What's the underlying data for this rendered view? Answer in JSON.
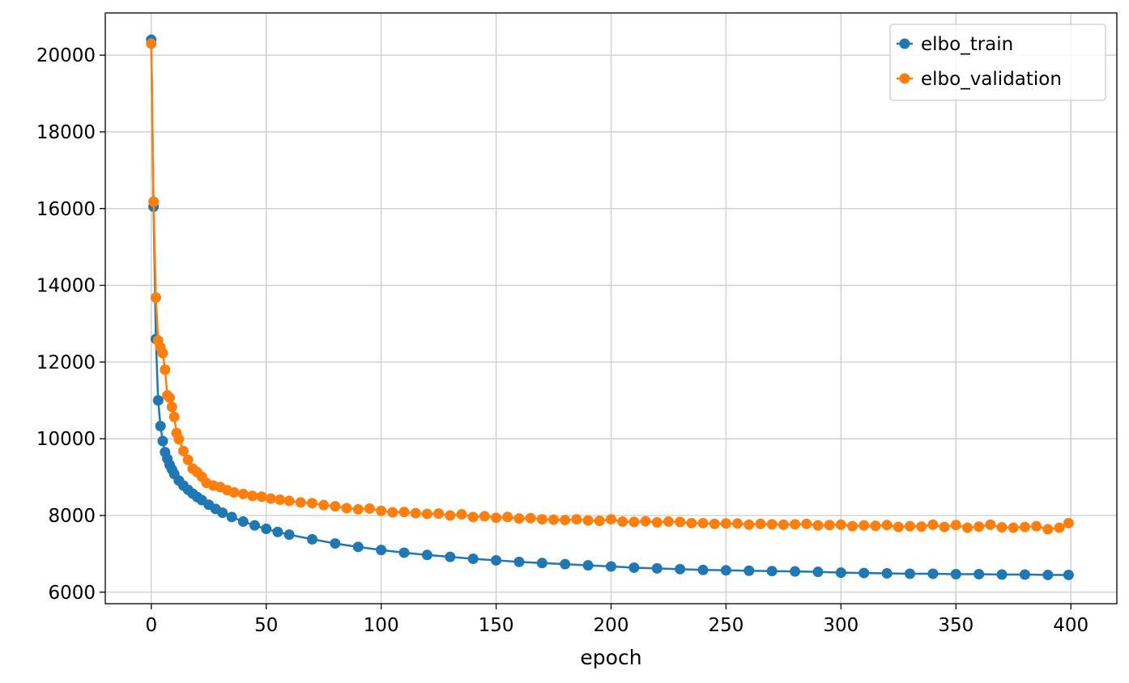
{
  "chart_data": {
    "type": "line",
    "title": "",
    "xlabel": "epoch",
    "ylabel": "",
    "xlim": [
      -20,
      420
    ],
    "ylim": [
      5700,
      21100
    ],
    "xticks": [
      0,
      50,
      100,
      150,
      200,
      250,
      300,
      350,
      400
    ],
    "yticks": [
      6000,
      8000,
      10000,
      12000,
      14000,
      16000,
      18000,
      20000
    ],
    "grid": true,
    "legend": "top-right",
    "markers": true,
    "series": [
      {
        "name": "elbo_train",
        "color": "#1f77b4",
        "x": [
          0,
          1,
          2,
          3,
          4,
          5,
          6,
          7,
          8,
          9,
          10,
          12,
          14,
          16,
          18,
          20,
          22,
          25,
          28,
          31,
          35,
          40,
          45,
          50,
          55,
          60,
          70,
          80,
          90,
          100,
          110,
          120,
          130,
          140,
          150,
          160,
          170,
          180,
          190,
          200,
          210,
          220,
          230,
          240,
          250,
          260,
          270,
          280,
          290,
          300,
          310,
          320,
          330,
          340,
          350,
          360,
          370,
          380,
          390,
          399
        ],
        "y": [
          20400,
          16050,
          12600,
          11000,
          10330,
          9940,
          9650,
          9480,
          9320,
          9200,
          9080,
          8910,
          8780,
          8670,
          8570,
          8480,
          8400,
          8280,
          8170,
          8070,
          7960,
          7840,
          7740,
          7650,
          7570,
          7500,
          7380,
          7270,
          7180,
          7100,
          7030,
          6970,
          6920,
          6870,
          6830,
          6790,
          6760,
          6730,
          6700,
          6670,
          6640,
          6620,
          6600,
          6580,
          6570,
          6560,
          6550,
          6540,
          6530,
          6510,
          6500,
          6490,
          6480,
          6480,
          6470,
          6470,
          6460,
          6460,
          6450,
          6450
        ]
      },
      {
        "name": "elbo_validation",
        "color": "#ff7f0e",
        "x": [
          0,
          1,
          2,
          3,
          4,
          5,
          6,
          7,
          8,
          9,
          10,
          11,
          12,
          14,
          16,
          18,
          20,
          22,
          24,
          27,
          30,
          33,
          36,
          40,
          44,
          48,
          52,
          56,
          60,
          65,
          70,
          75,
          80,
          85,
          90,
          95,
          100,
          105,
          110,
          115,
          120,
          125,
          130,
          135,
          140,
          145,
          150,
          155,
          160,
          165,
          170,
          175,
          180,
          185,
          190,
          195,
          200,
          205,
          210,
          215,
          220,
          225,
          230,
          235,
          240,
          245,
          250,
          255,
          260,
          265,
          270,
          275,
          280,
          285,
          290,
          295,
          300,
          305,
          310,
          315,
          320,
          325,
          330,
          335,
          340,
          345,
          350,
          355,
          360,
          365,
          370,
          375,
          380,
          385,
          390,
          395,
          399
        ],
        "y": [
          20300,
          16180,
          13680,
          12560,
          12380,
          12230,
          11800,
          11130,
          11070,
          10830,
          10570,
          10150,
          9990,
          9680,
          9450,
          9220,
          9130,
          9010,
          8850,
          8780,
          8740,
          8660,
          8600,
          8560,
          8510,
          8490,
          8440,
          8410,
          8380,
          8340,
          8320,
          8270,
          8240,
          8190,
          8160,
          8180,
          8120,
          8080,
          8090,
          8060,
          8040,
          8050,
          8000,
          8030,
          7960,
          7980,
          7940,
          7960,
          7920,
          7930,
          7900,
          7890,
          7880,
          7900,
          7870,
          7860,
          7900,
          7840,
          7830,
          7850,
          7820,
          7840,
          7830,
          7800,
          7800,
          7780,
          7790,
          7790,
          7760,
          7780,
          7770,
          7760,
          7770,
          7780,
          7740,
          7750,
          7760,
          7720,
          7740,
          7730,
          7750,
          7700,
          7720,
          7710,
          7760,
          7700,
          7750,
          7680,
          7710,
          7760,
          7690,
          7680,
          7700,
          7720,
          7640,
          7680,
          7800
        ]
      }
    ]
  }
}
